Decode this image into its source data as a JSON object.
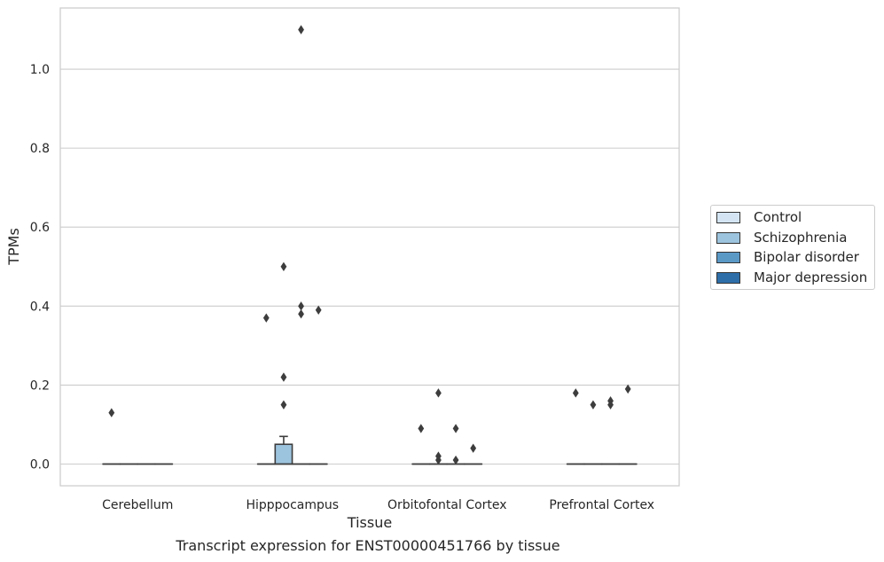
{
  "chart_data": {
    "type": "box",
    "title": "",
    "caption": "Transcript expression for ENST00000451766 by tissue",
    "xlabel": "Tissue",
    "ylabel": "TPMs",
    "ylim": [
      -0.055,
      1.155
    ],
    "yticks": [
      0.0,
      0.2,
      0.4,
      0.6,
      0.8,
      1.0
    ],
    "ytick_labels": [
      "0.0",
      "0.2",
      "0.4",
      "0.6",
      "0.8",
      "1.0"
    ],
    "grid": "horizontal",
    "legend_position": "right",
    "categories": [
      "Cerebellum",
      "Hipppocampus",
      "Orbitofontal Cortex",
      "Prefrontal Cortex"
    ],
    "series": [
      {
        "name": "Control",
        "color": "#d4e4f2",
        "boxes": [
          {
            "q1": 0,
            "median": 0,
            "q3": 0,
            "whisker_low": 0,
            "whisker_high": 0,
            "outliers": [
              0.13
            ]
          },
          {
            "q1": 0,
            "median": 0,
            "q3": 0,
            "whisker_low": 0,
            "whisker_high": 0,
            "outliers": [
              0.37
            ]
          },
          {
            "q1": 0,
            "median": 0,
            "q3": 0,
            "whisker_low": 0,
            "whisker_high": 0,
            "outliers": [
              0.09
            ]
          },
          {
            "q1": 0,
            "median": 0,
            "q3": 0,
            "whisker_low": 0,
            "whisker_high": 0,
            "outliers": [
              0.18
            ]
          }
        ]
      },
      {
        "name": "Schizophrenia",
        "color": "#9dc4de",
        "boxes": [
          {
            "q1": 0,
            "median": 0,
            "q3": 0,
            "whisker_low": 0,
            "whisker_high": 0,
            "outliers": []
          },
          {
            "q1": 0,
            "median": 0,
            "q3": 0.05,
            "whisker_low": 0,
            "whisker_high": 0.07,
            "outliers": [
              0.15,
              0.22,
              0.5
            ]
          },
          {
            "q1": 0,
            "median": 0,
            "q3": 0,
            "whisker_low": 0,
            "whisker_high": 0,
            "outliers": [
              0.18,
              0.02,
              0.01
            ]
          },
          {
            "q1": 0,
            "median": 0,
            "q3": 0,
            "whisker_low": 0,
            "whisker_high": 0,
            "outliers": [
              0.15
            ]
          }
        ]
      },
      {
        "name": "Bipolar disorder",
        "color": "#5a98c6",
        "boxes": [
          {
            "q1": 0,
            "median": 0,
            "q3": 0,
            "whisker_low": 0,
            "whisker_high": 0,
            "outliers": []
          },
          {
            "q1": 0,
            "median": 0,
            "q3": 0,
            "whisker_low": 0,
            "whisker_high": 0,
            "outliers": [
              1.1,
              0.4,
              0.38
            ]
          },
          {
            "q1": 0,
            "median": 0,
            "q3": 0,
            "whisker_low": 0,
            "whisker_high": 0,
            "outliers": [
              0.09,
              0.01
            ]
          },
          {
            "q1": 0,
            "median": 0,
            "q3": 0,
            "whisker_low": 0,
            "whisker_high": 0,
            "outliers": [
              0.16,
              0.15
            ]
          }
        ]
      },
      {
        "name": "Major depression",
        "color": "#2d6ea8",
        "boxes": [
          {
            "q1": 0,
            "median": 0,
            "q3": 0,
            "whisker_low": 0,
            "whisker_high": 0,
            "outliers": []
          },
          {
            "q1": 0,
            "median": 0,
            "q3": 0,
            "whisker_low": 0,
            "whisker_high": 0,
            "outliers": [
              0.39
            ]
          },
          {
            "q1": 0,
            "median": 0,
            "q3": 0,
            "whisker_low": 0,
            "whisker_high": 0,
            "outliers": [
              0.04
            ]
          },
          {
            "q1": 0,
            "median": 0,
            "q3": 0,
            "whisker_low": 0,
            "whisker_high": 0,
            "outliers": [
              0.19
            ]
          }
        ]
      }
    ]
  }
}
